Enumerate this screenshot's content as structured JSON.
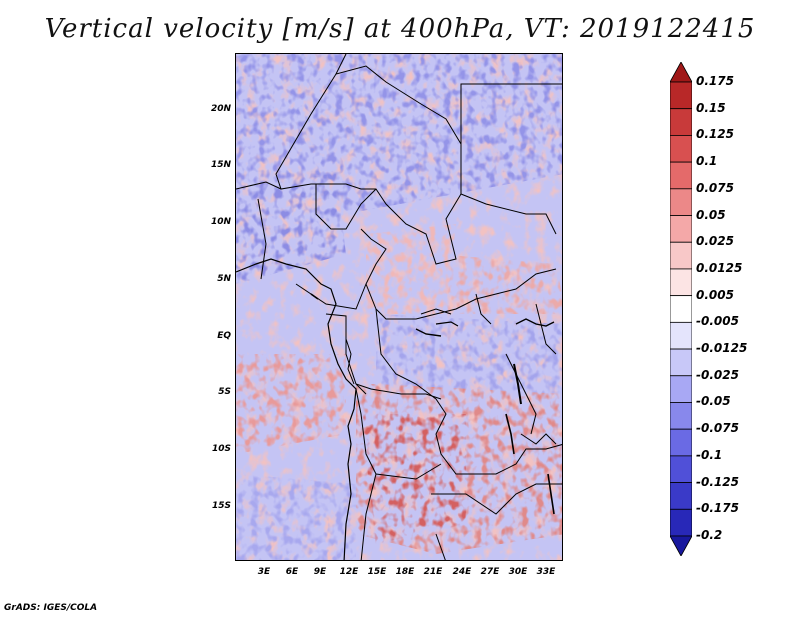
{
  "title": "Vertical velocity [m/s] at 400hPa, VT: 2019122415",
  "footer": "GrADS: IGES/COLA",
  "map": {
    "lat_labels": [
      "20N",
      "15N",
      "10N",
      "5N",
      "EQ",
      "5S",
      "10S",
      "15S"
    ],
    "lon_labels": [
      "3E",
      "6E",
      "9E",
      "12E",
      "15E",
      "18E",
      "21E",
      "24E",
      "27E",
      "30E",
      "33E"
    ]
  },
  "colorbar": {
    "labels": [
      "0.175",
      "0.15",
      "0.125",
      "0.1",
      "0.075",
      "0.05",
      "0.025",
      "0.0125",
      "0.005",
      "-0.005",
      "-0.0125",
      "-0.025",
      "-0.05",
      "-0.075",
      "-0.1",
      "-0.125",
      "-0.175",
      "-0.2"
    ],
    "colors": [
      "#a01818",
      "#b82828",
      "#c83a3a",
      "#d85050",
      "#e46a6a",
      "#ec8888",
      "#f4a8a8",
      "#f8c8c8",
      "#fce4e4",
      "#ffffff",
      "#e4e4fc",
      "#c8c8f8",
      "#a8a8f4",
      "#8888ec",
      "#6a6ae4",
      "#5050d8",
      "#3a3ac8",
      "#2828b8",
      "#18189e"
    ]
  }
}
